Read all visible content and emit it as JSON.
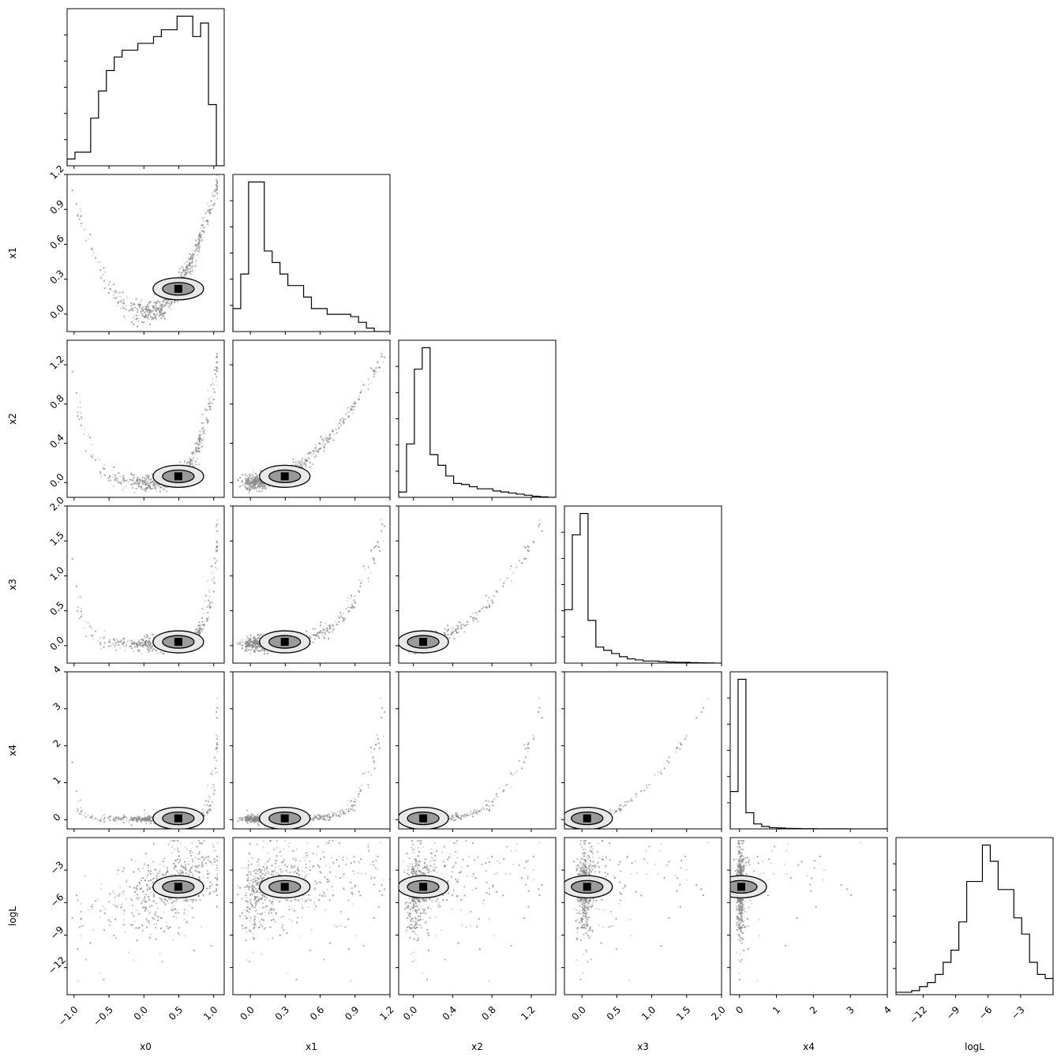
{
  "chart_data": {
    "type": "corner",
    "parameters": [
      "x0",
      "x1",
      "x2",
      "x3",
      "x4",
      "logL"
    ],
    "axes": [
      {
        "name": "x0",
        "range": [
          -1.1,
          1.15
        ],
        "ticks": [
          -1.0,
          -0.5,
          0.0,
          0.5,
          1.0
        ],
        "tick_labels": [
          "−1.0",
          "−0.5",
          "0.0",
          "0.5",
          "1.0"
        ]
      },
      {
        "name": "x1",
        "range": [
          -0.15,
          1.2
        ],
        "ticks": [
          0.0,
          0.3,
          0.6,
          0.9,
          1.2
        ],
        "tick_labels": [
          "0.0",
          "0.3",
          "0.6",
          "0.9",
          "1.2"
        ]
      },
      {
        "name": "x2",
        "range": [
          -0.15,
          1.45
        ],
        "ticks": [
          0.0,
          0.4,
          0.8,
          1.2
        ],
        "tick_labels": [
          "0.0",
          "0.4",
          "0.8",
          "1.2"
        ]
      },
      {
        "name": "x3",
        "range": [
          -0.25,
          2.0
        ],
        "ticks": [
          0.0,
          0.5,
          1.0,
          1.5,
          2.0
        ],
        "tick_labels": [
          "0.0",
          "0.5",
          "1.0",
          "1.5",
          "2.0"
        ]
      },
      {
        "name": "x4",
        "range": [
          -0.25,
          4.0
        ],
        "ticks": [
          0,
          1,
          2,
          3,
          4
        ],
        "tick_labels": [
          "0",
          "1",
          "2",
          "3",
          "4"
        ]
      },
      {
        "name": "logL",
        "range": [
          -14.5,
          0
        ],
        "ticks": [
          -12,
          -9,
          -6,
          -3
        ],
        "tick_labels": [
          "−12",
          "−9",
          "−6",
          "−3"
        ]
      }
    ],
    "histograms": [
      [
        1,
        2,
        2,
        7,
        11,
        14,
        16,
        17,
        17,
        18,
        18,
        19,
        20,
        20,
        22,
        22,
        19,
        21,
        9,
        0
      ],
      [
        2,
        5,
        13,
        13,
        7,
        6,
        5,
        4,
        4,
        3,
        2,
        2,
        1.5,
        1.5,
        1.5,
        1.3,
        0.8,
        0.3,
        0,
        0
      ],
      [
        0.5,
        5,
        12,
        14,
        4,
        3,
        2,
        1.3,
        1.2,
        1.0,
        0.8,
        0.8,
        0.6,
        0.5,
        0.4,
        0.3,
        0.2,
        0.1,
        0.05,
        0
      ],
      [
        5,
        12,
        14,
        4,
        1.5,
        1.2,
        0.9,
        0.6,
        0.4,
        0.3,
        0.2,
        0.2,
        0.15,
        0.1,
        0.08,
        0.08,
        0.05,
        0.03,
        0.02,
        0
      ],
      [
        3,
        12,
        1.3,
        0.4,
        0.2,
        0.1,
        0.07,
        0.04,
        0.03,
        0.02,
        0.02,
        0.01,
        0.01,
        0.01,
        0.01,
        0,
        0,
        0,
        0,
        0
      ],
      [
        0.3,
        0.3,
        0.5,
        1,
        1.5,
        2.5,
        4,
        5.5,
        9,
        14,
        14,
        18.5,
        16.5,
        13,
        13,
        9.5,
        7.5,
        4,
        2.5,
        2
      ]
    ],
    "grid": false,
    "legend": "none",
    "colors": {
      "contour": "#000000",
      "scatter": "#888888",
      "fill_dark": "#000000",
      "fill_light": "#e8e8e8"
    }
  }
}
